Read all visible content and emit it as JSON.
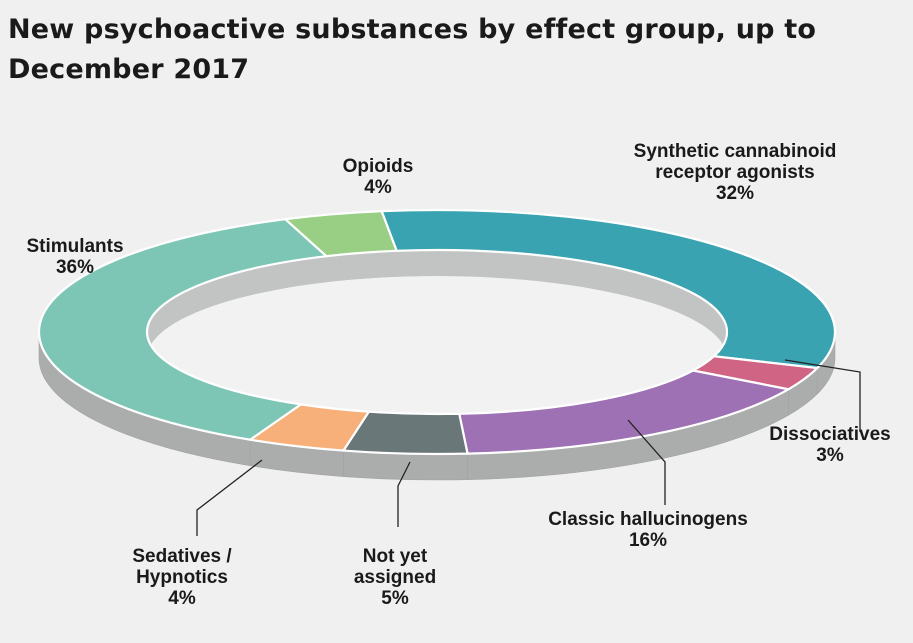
{
  "title": "New psychoactive substances by effect group, up to December 2017",
  "chart_data": {
    "type": "pie",
    "style": "3d-donut",
    "title": "New psychoactive substances by effect group, up to December 2017",
    "unit": "%",
    "slices": [
      {
        "label": "Synthetic cannabinoid receptor agonists",
        "label_lines": [
          "Synthetic cannabinoid",
          "receptor agonists"
        ],
        "value": 32,
        "value_text": "32%",
        "color": "#3aa3b1"
      },
      {
        "label": "Dissociatives",
        "label_lines": [
          "Dissociatives"
        ],
        "value": 3,
        "value_text": "3%",
        "color": "#cf6484"
      },
      {
        "label": "Classic hallucinogens",
        "label_lines": [
          "Classic hallucinogens"
        ],
        "value": 16,
        "value_text": "16%",
        "color": "#9e71b4"
      },
      {
        "label": "Not yet assigned",
        "label_lines": [
          "Not yet",
          "assigned"
        ],
        "value": 5,
        "value_text": "5%",
        "color": "#697779"
      },
      {
        "label": "Sedatives / Hypnotics",
        "label_lines": [
          "Sedatives /",
          "Hypnotics"
        ],
        "value": 4,
        "value_text": "4%",
        "color": "#f7b07a"
      },
      {
        "label": "Stimulants",
        "label_lines": [
          "Stimulants"
        ],
        "value": 36,
        "value_text": "36%",
        "color": "#7dc6b6"
      },
      {
        "label": "Opioids",
        "label_lines": [
          "Opioids"
        ],
        "value": 4,
        "value_text": "4%",
        "color": "#98cf84"
      }
    ]
  }
}
